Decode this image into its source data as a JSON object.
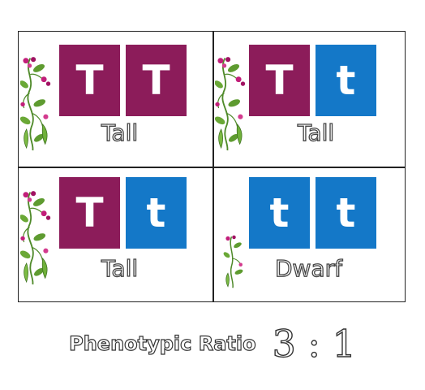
{
  "punnett": {
    "cells": [
      {
        "alleles": [
          "T",
          "T"
        ],
        "types": [
          "dominant",
          "dominant"
        ],
        "phenotype": "Tall"
      },
      {
        "alleles": [
          "T",
          "t"
        ],
        "types": [
          "dominant",
          "recessive"
        ],
        "phenotype": "Tall"
      },
      {
        "alleles": [
          "T",
          "t"
        ],
        "types": [
          "dominant",
          "recessive"
        ],
        "phenotype": "Tall"
      },
      {
        "alleles": [
          "t",
          "t"
        ],
        "types": [
          "recessive",
          "recessive"
        ],
        "phenotype": "Dwarf"
      }
    ]
  },
  "ratio": {
    "label": "Phenotypic Ratio",
    "value": "3 : 1"
  },
  "colors": {
    "dominant": "#8c1c5a",
    "recessive": "#1478c8"
  },
  "icons": {
    "plant_tall": "pea-plant-tall-icon",
    "plant_dwarf": "pea-plant-dwarf-icon"
  }
}
